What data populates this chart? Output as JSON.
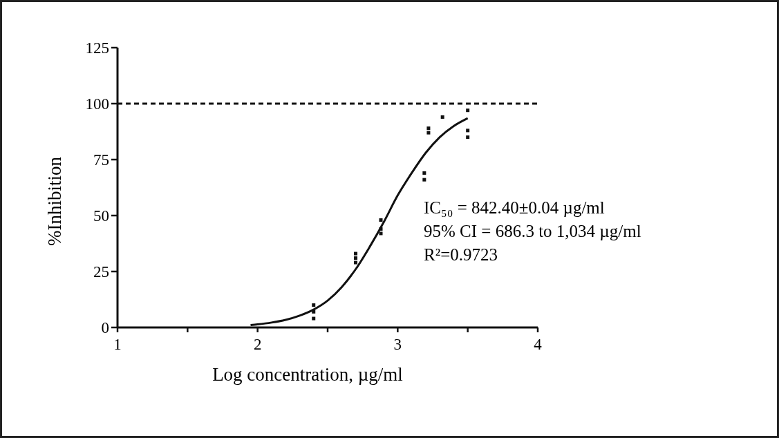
{
  "chart_data": {
    "type": "scatter",
    "xlabel": "Log concentration, µg/ml",
    "ylabel": "%Inhibition",
    "xlim": [
      1,
      4
    ],
    "xticks": [
      1,
      {
        "value": 1.5,
        "label": null
      },
      2,
      {
        "value": 2.5,
        "label": null
      },
      3,
      {
        "value": 3.5,
        "label": null
      },
      4
    ],
    "ylim": [
      0,
      125
    ],
    "yticks": [
      0,
      25,
      50,
      75,
      100,
      125
    ],
    "grid": false,
    "series": [
      {
        "marker": "square",
        "color": "#111111",
        "x": [
          2.4,
          2.4,
          2.4,
          2.7,
          2.7,
          2.7,
          2.88,
          2.88,
          2.88,
          3.19,
          3.19,
          3.22,
          3.22,
          3.32,
          3.5,
          3.5,
          3.5
        ],
        "values": [
          10,
          7,
          4,
          33,
          31,
          29,
          48,
          44,
          42,
          69,
          66,
          89,
          87,
          94,
          97,
          88,
          85
        ]
      },
      {
        "type": "line",
        "marker": "none",
        "line_style": "solid",
        "color": "#111111",
        "x": [
          1.95,
          2.0,
          2.1,
          2.2,
          2.3,
          2.4,
          2.5,
          2.6,
          2.7,
          2.8,
          2.9,
          3.0,
          3.1,
          3.2,
          3.3,
          3.4,
          3.5
        ],
        "values": [
          1.1,
          1.4,
          2.2,
          3.4,
          5.3,
          8,
          12,
          18,
          26,
          36,
          47,
          59,
          69,
          78,
          85,
          90,
          93.5
        ]
      }
    ],
    "ref_lines": [
      {
        "axis": "y",
        "value": 100,
        "line_style": "dashed",
        "color": "#111111"
      }
    ],
    "annotations": [
      "IC₅₀ = 842.40±0.04 µg/ml",
      "95% CI = 686.3 to 1,034 µg/ml",
      "R²=0.9723"
    ]
  }
}
